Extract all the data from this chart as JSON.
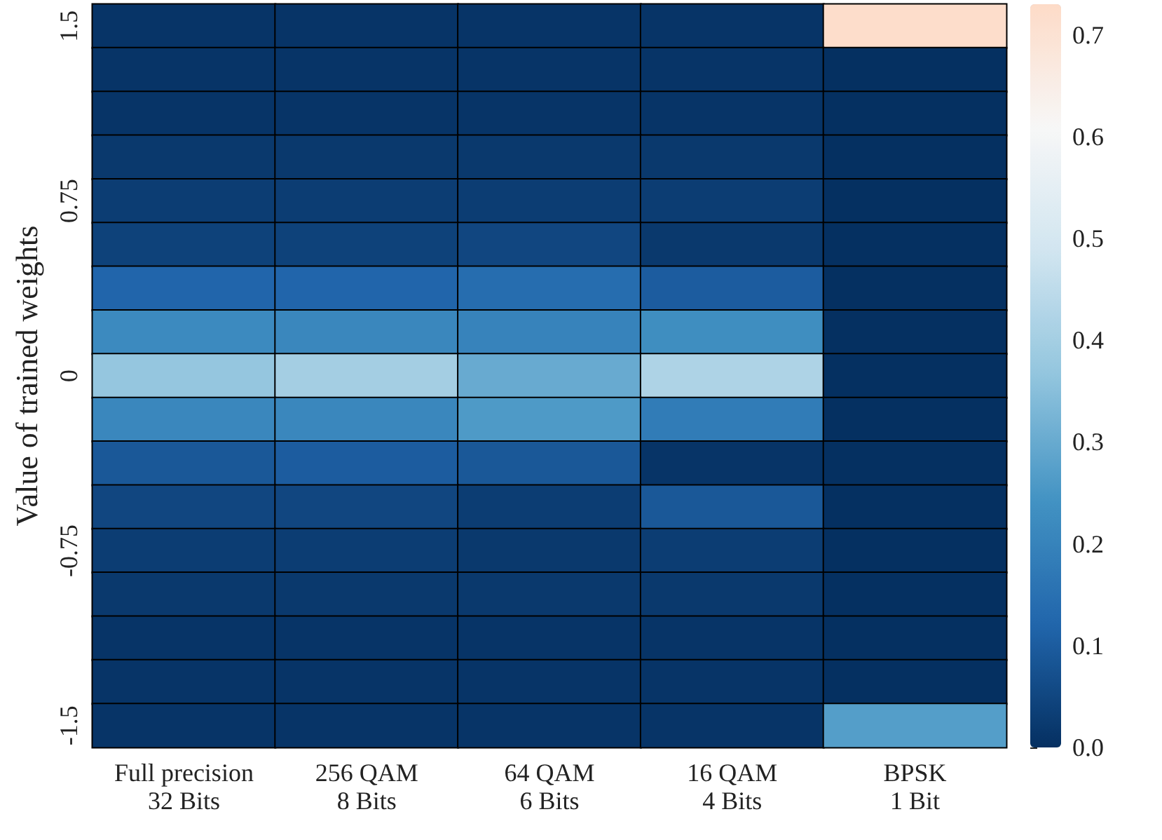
{
  "chart_data": {
    "type": "heatmap",
    "ylabel": "Value of trained weights",
    "categories": [
      "Full precision\n32 Bits",
      "256 QAM\n8 Bits",
      "64 QAM\n6 Bits",
      "16 QAM\n4 Bits",
      "BPSK\n1 Bit"
    ],
    "y_categories": [
      "1.5",
      null,
      null,
      null,
      "0.75",
      null,
      null,
      null,
      "0",
      null,
      null,
      null,
      "-0.75",
      null,
      null,
      null,
      "-1.5"
    ],
    "cells": [
      [
        0.01,
        0.01,
        0.01,
        0.01,
        0.72
      ],
      [
        0.01,
        0.01,
        0.01,
        0.01,
        0.0
      ],
      [
        0.01,
        0.01,
        0.01,
        0.01,
        0.0
      ],
      [
        0.02,
        0.02,
        0.02,
        0.02,
        0.0
      ],
      [
        0.03,
        0.03,
        0.03,
        0.03,
        0.0
      ],
      [
        0.04,
        0.04,
        0.05,
        0.02,
        0.0
      ],
      [
        0.12,
        0.12,
        0.14,
        0.1,
        0.0
      ],
      [
        0.22,
        0.21,
        0.2,
        0.23,
        0.0
      ],
      [
        0.37,
        0.4,
        0.3,
        0.42,
        0.0
      ],
      [
        0.21,
        0.21,
        0.26,
        0.18,
        0.0
      ],
      [
        0.09,
        0.1,
        0.09,
        0.01,
        0.0
      ],
      [
        0.05,
        0.05,
        0.03,
        0.09,
        0.0
      ],
      [
        0.03,
        0.03,
        0.02,
        0.03,
        0.0
      ],
      [
        0.02,
        0.02,
        0.02,
        0.02,
        0.0
      ],
      [
        0.01,
        0.01,
        0.01,
        0.01,
        0.0
      ],
      [
        0.01,
        0.01,
        0.01,
        0.01,
        0.0
      ],
      [
        0.01,
        0.01,
        0.01,
        0.01,
        0.27
      ]
    ],
    "clim": [
      0,
      0.73
    ],
    "cticks": [
      {
        "value": 0,
        "label": "0.0"
      },
      0.1,
      0.2,
      0.3,
      0.4,
      0.5,
      0.6,
      0.7
    ]
  }
}
